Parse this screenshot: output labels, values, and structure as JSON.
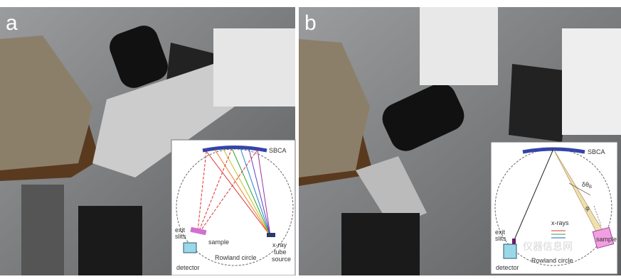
{
  "panels": [
    {
      "label": "a",
      "inset": {
        "crystal": "SBCA",
        "slits_line1": "exit",
        "slits_line2": "slits",
        "sample": "sample",
        "detector": "detector",
        "circle": "Rowland circle",
        "source_line1": "x-ray",
        "source_line2": "tube",
        "source_line3": "source"
      }
    },
    {
      "label": "b",
      "inset": {
        "crystal": "SBCA",
        "angle": "δθ",
        "angle_subscript": "B",
        "phi": "φ",
        "slits_line1": "exit",
        "slits_line2": "slits",
        "rays": "x-rays",
        "sample": "sample",
        "detector": "detector",
        "circle": "Rowland circle"
      }
    }
  ],
  "watermark": "仪器信息网"
}
